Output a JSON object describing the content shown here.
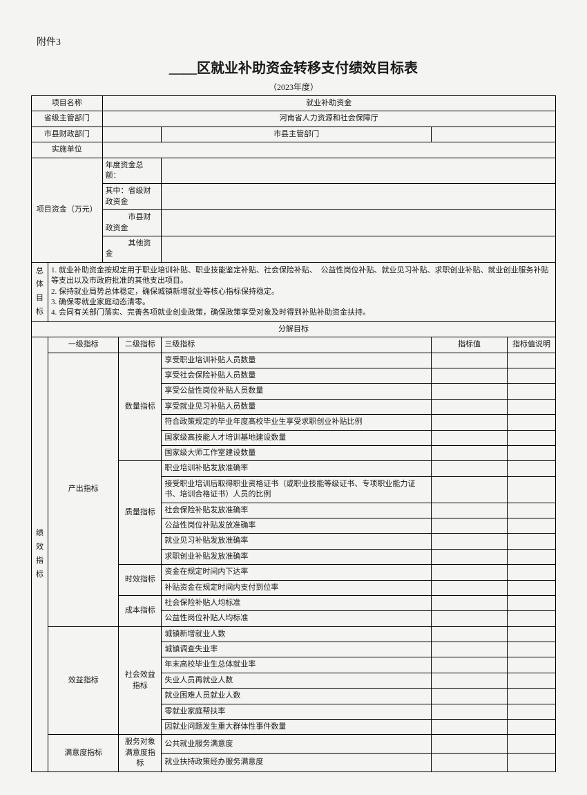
{
  "attachment": "附件3",
  "title": "＿＿区就业补助资金转移支付绩效目标表",
  "subtitle": "（2023年度）",
  "header": {
    "project_name_label": "项目名称",
    "project_name_value": "就业补助资金",
    "province_dept_label": "省级主管部门",
    "province_dept_value": "河南省人力资源和社会保障厅",
    "city_finance_label": "市县财政部门",
    "city_dept_label": "市县主管部门",
    "impl_unit_label": "实施单位"
  },
  "funds": {
    "label": "项目资金（万元）",
    "total_label": "年度资金总额：",
    "prov_label": "其中：省级财政资金",
    "city_label": "　　　市县财政资金",
    "other_label": "　　　其他资金"
  },
  "overall": {
    "label": "总体目标",
    "text": "1. 就业补助资金按规定用于职业培训补贴、职业技能鉴定补贴、社会保险补贴、　公益性岗位补贴、就业见习补贴、求职创业补贴、就业创业服务补贴等支出以及市政府批准的其他支出项目。\n2. 保持就业局势总体稳定，确保城镇新增就业等核心指标保持稳定。\n3. 确保零就业家庭动态清零。\n4. 会同有关部门落实、完善各项就业创业政策，确保政策享受对象及时得到补贴补助资金扶持。"
  },
  "decompose_label": "分解目标",
  "cols": {
    "lvl1": "一级指标",
    "lvl2": "二级指标",
    "lvl3": "三级指标",
    "val": "指标值",
    "desc": "指标值说明"
  },
  "perf_label": "绩效指标",
  "lvl1": {
    "output": "产出指标",
    "benefit": "效益指标",
    "satisfaction": "满意度指标"
  },
  "lvl2": {
    "quantity": "数量指标",
    "quality": "质量指标",
    "time": "时效指标",
    "cost": "成本指标",
    "social": "社会效益指标",
    "satisfy": "服务对象满意度指标"
  },
  "lvl3": {
    "q1": "享受职业培训补贴人员数量",
    "q2": "享受社会保险补贴人员数量",
    "q3": "享受公益性岗位补贴人员数量",
    "q4": "享受就业见习补贴人员数量",
    "q5": "符合政策规定的毕业年度高校毕业生享受求职创业补贴比例",
    "q6": "国家级高技能人才培训基地建设数量",
    "q7": "国家级大师工作室建设数量",
    "ql1": "职业培训补贴发放准确率",
    "ql2": "接受职业培训后取得职业资格证书（或职业技能等级证书、专项职业能力证书、培训合格证书）人员的比例",
    "ql3": "社会保险补贴发放准确率",
    "ql4": "公益性岗位补贴发放准确率",
    "ql5": "就业见习补贴发放准确率",
    "ql6": "求职创业补贴发放准确率",
    "t1": "资金在规定时间内下达率",
    "t2": "补贴资金在规定时间内支付到位率",
    "c1": "社会保险补贴人均标准",
    "c2": "公益性岗位补贴人均标准",
    "s1": "城镇新增就业人数",
    "s2": "城镇调查失业率",
    "s3": "年末高校毕业生总体就业率",
    "s4": "失业人员再就业人数",
    "s5": "就业困难人员就业人数",
    "s6": "零就业家庭帮扶率",
    "s7": "因就业问题发生重大群体性事件数量",
    "sa1": "公共就业服务满意度",
    "sa2": "就业扶持政策经办服务满意度"
  }
}
